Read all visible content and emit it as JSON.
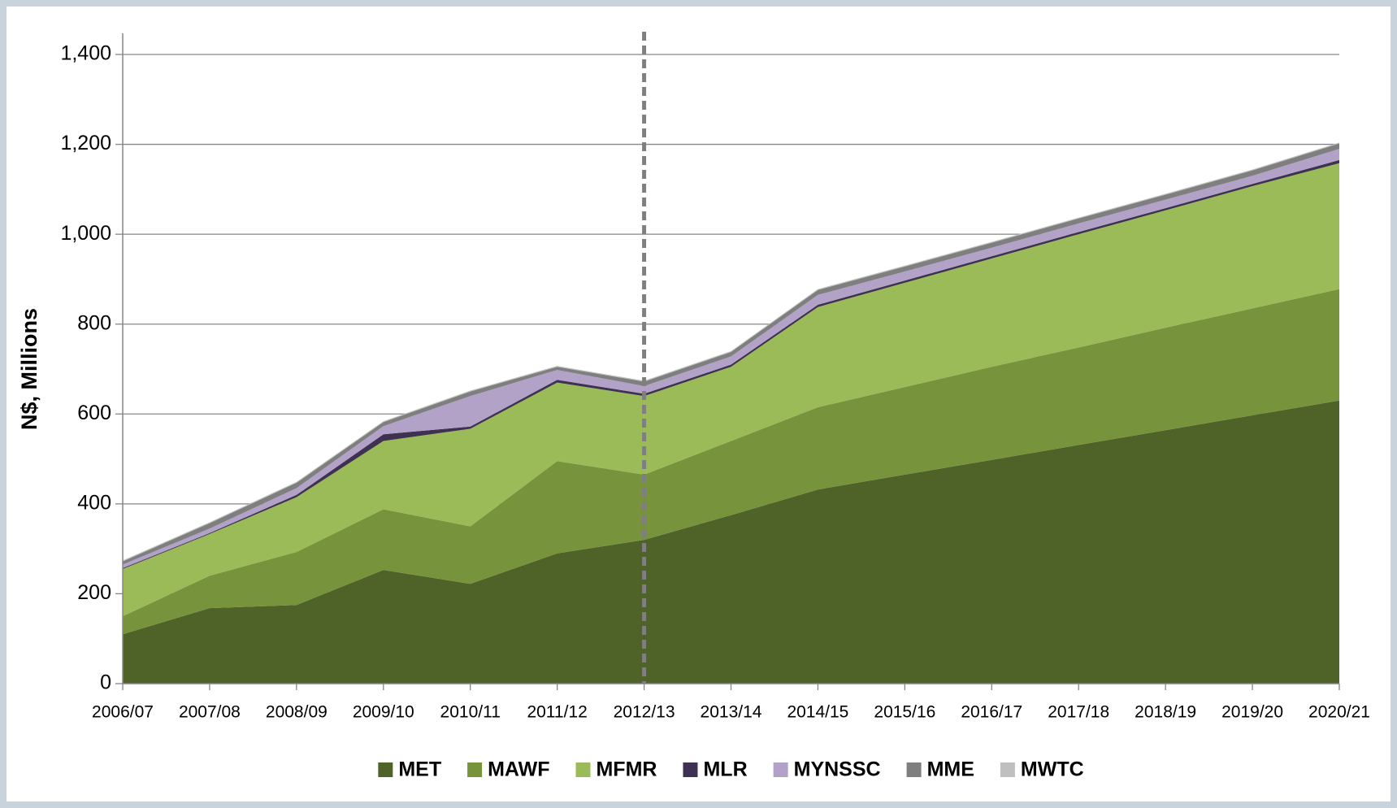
{
  "chart_data": {
    "type": "stacked_area",
    "y_label": "N$, Millions",
    "categories": [
      "2006/07",
      "2007/08",
      "2008/09",
      "2009/10",
      "2010/11",
      "2011/12",
      "2012/13",
      "2013/14",
      "2014/15",
      "2015/16",
      "2016/17",
      "2017/18",
      "2018/19",
      "2019/20",
      "2020/21"
    ],
    "series": [
      {
        "name": "MET",
        "color": "#4f6228",
        "values": [
          110,
          168,
          175,
          253,
          222,
          290,
          320,
          375,
          432,
          465,
          498,
          531,
          564,
          597,
          630
        ]
      },
      {
        "name": "MAWF",
        "color": "#77933c",
        "values": [
          40,
          72,
          118,
          135,
          128,
          205,
          145,
          165,
          183,
          195,
          207,
          217,
          228,
          238,
          248
        ]
      },
      {
        "name": "MFMR",
        "color": "#9bbb59",
        "values": [
          105,
          93,
          122,
          152,
          217,
          175,
          175,
          165,
          223,
          232,
          241,
          252,
          261,
          272,
          280
        ]
      },
      {
        "name": "MLR",
        "color": "#3f3151",
        "values": [
          2,
          2,
          5,
          15,
          5,
          6,
          5,
          5,
          5,
          5,
          5,
          5,
          5,
          5,
          7
        ]
      },
      {
        "name": "MYNSSC",
        "color": "#b3a2c7",
        "values": [
          8,
          10,
          15,
          18,
          68,
          22,
          17,
          18,
          22,
          20,
          19,
          19,
          19,
          18,
          25
        ]
      },
      {
        "name": "MME",
        "color": "#7f7f7f",
        "values": [
          7,
          12,
          12,
          9,
          10,
          7,
          10,
          10,
          11,
          11,
          11,
          11,
          11,
          12,
          12
        ]
      },
      {
        "name": "MWTC",
        "color": "#bfbfbf",
        "values": [
          2,
          2,
          2,
          2,
          2,
          2,
          2,
          2,
          2,
          2,
          2,
          2,
          2,
          2,
          2
        ]
      }
    ],
    "ylim": [
      0,
      1400
    ],
    "yticks": [
      0,
      200,
      400,
      600,
      800,
      {
        "value": 1000,
        "label": "1,000"
      },
      {
        "value": 1200,
        "label": "1,200"
      },
      {
        "value": 1400,
        "label": "1,400"
      }
    ],
    "grid": true,
    "legend": "bottom"
  }
}
